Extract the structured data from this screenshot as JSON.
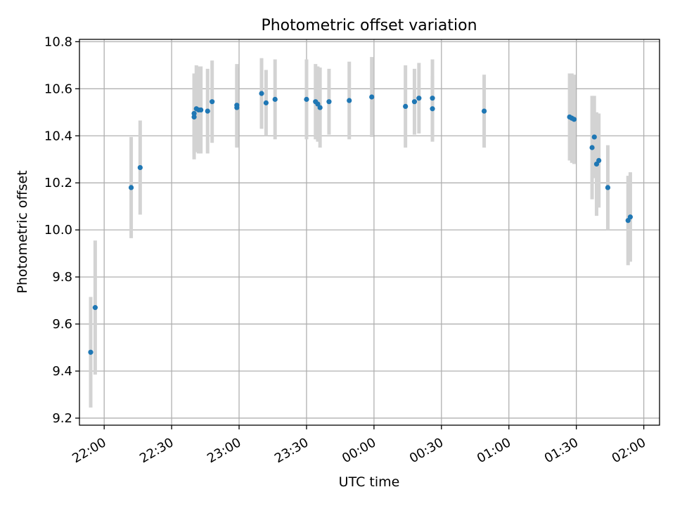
{
  "chart_data": {
    "type": "scatter",
    "title": "Photometric offset variation",
    "xlabel": "UTC time",
    "ylabel": "Photometric offset",
    "xlim": [
      "21:49",
      "02:07"
    ],
    "ylim": [
      9.17,
      10.81
    ],
    "xticks": [
      "22:00",
      "22:30",
      "23:00",
      "23:30",
      "00:00",
      "00:30",
      "01:00",
      "01:30",
      "02:00"
    ],
    "yticks": [
      "9.2",
      "9.4",
      "9.6",
      "9.8",
      "10.0",
      "10.2",
      "10.4",
      "10.6",
      "10.8"
    ],
    "grid": true,
    "colors": {
      "points": "#1f77b4",
      "errorbars": "#d3d3d3",
      "grid": "#b0b0b0"
    },
    "points": [
      {
        "x": "21:54",
        "y": 9.48,
        "err": 0.235
      },
      {
        "x": "21:56",
        "y": 9.67,
        "err": 0.285
      },
      {
        "x": "22:12",
        "y": 10.18,
        "err": 0.215
      },
      {
        "x": "22:16",
        "y": 10.265,
        "err": 0.2
      },
      {
        "x": "22:40",
        "y": 10.48,
        "err": 0.18
      },
      {
        "x": "22:40",
        "y": 10.495,
        "err": 0.17
      },
      {
        "x": "22:41",
        "y": 10.515,
        "err": 0.185
      },
      {
        "x": "22:42",
        "y": 10.51,
        "err": 0.185
      },
      {
        "x": "22:43",
        "y": 10.51,
        "err": 0.185
      },
      {
        "x": "22:46",
        "y": 10.505,
        "err": 0.18
      },
      {
        "x": "22:48",
        "y": 10.545,
        "err": 0.175
      },
      {
        "x": "22:59",
        "y": 10.53,
        "err": 0.175
      },
      {
        "x": "22:59",
        "y": 10.52,
        "err": 0.17
      },
      {
        "x": "23:10",
        "y": 10.58,
        "err": 0.15
      },
      {
        "x": "23:12",
        "y": 10.54,
        "err": 0.14
      },
      {
        "x": "23:16",
        "y": 10.555,
        "err": 0.17
      },
      {
        "x": "23:30",
        "y": 10.555,
        "err": 0.17
      },
      {
        "x": "23:34",
        "y": 10.545,
        "err": 0.16
      },
      {
        "x": "23:35",
        "y": 10.535,
        "err": 0.16
      },
      {
        "x": "23:36",
        "y": 10.52,
        "err": 0.17
      },
      {
        "x": "23:40",
        "y": 10.545,
        "err": 0.14
      },
      {
        "x": "23:49",
        "y": 10.55,
        "err": 0.165
      },
      {
        "x": "23:59",
        "y": 10.565,
        "err": 0.17
      },
      {
        "x": "00:14",
        "y": 10.525,
        "err": 0.175
      },
      {
        "x": "00:18",
        "y": 10.545,
        "err": 0.14
      },
      {
        "x": "00:20",
        "y": 10.56,
        "err": 0.15
      },
      {
        "x": "00:26",
        "y": 10.515,
        "err": 0.14
      },
      {
        "x": "00:26",
        "y": 10.56,
        "err": 0.165
      },
      {
        "x": "00:49",
        "y": 10.505,
        "err": 0.155
      },
      {
        "x": "01:27",
        "y": 10.48,
        "err": 0.185
      },
      {
        "x": "01:28",
        "y": 10.475,
        "err": 0.19
      },
      {
        "x": "01:29",
        "y": 10.47,
        "err": 0.19
      },
      {
        "x": "01:37",
        "y": 10.35,
        "err": 0.22
      },
      {
        "x": "01:38",
        "y": 10.395,
        "err": 0.175
      },
      {
        "x": "01:39",
        "y": 10.28,
        "err": 0.22
      },
      {
        "x": "01:40",
        "y": 10.295,
        "err": 0.2
      },
      {
        "x": "01:44",
        "y": 10.18,
        "err": 0.18
      },
      {
        "x": "01:53",
        "y": 10.04,
        "err": 0.19
      },
      {
        "x": "01:54",
        "y": 10.055,
        "err": 0.19
      }
    ]
  }
}
